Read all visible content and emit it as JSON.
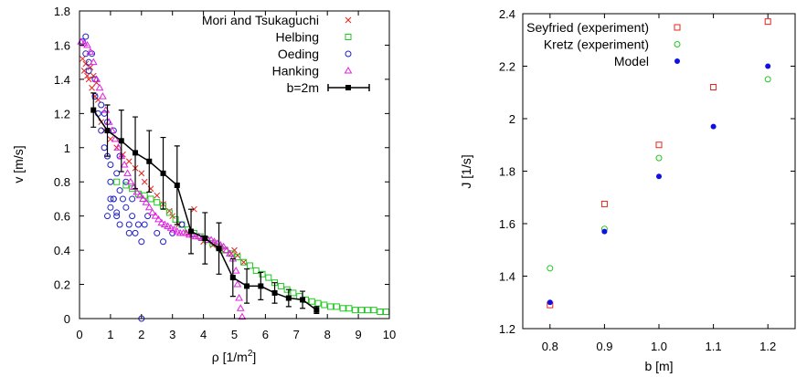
{
  "chart_data": [
    {
      "type": "scatter",
      "xlabel": "ρ [1/m",
      "xlabel_sup": "2",
      "xlabel_tail": "]",
      "ylabel": "v [m/s]",
      "xlim": [
        0,
        10
      ],
      "ylim": [
        0,
        1.8
      ],
      "xticks": [
        0,
        1,
        2,
        3,
        4,
        5,
        6,
        7,
        8,
        9,
        10
      ],
      "xtick_labels": [
        "0",
        "1",
        "2",
        "3",
        "4",
        "5",
        "6",
        "7",
        "8",
        "9",
        "10"
      ],
      "yticks": [
        0,
        0.2,
        0.4,
        0.6,
        0.8,
        1.0,
        1.2,
        1.4,
        1.6,
        1.8
      ],
      "ytick_labels": [
        "0",
        "0.2",
        "0.4",
        "0.6",
        "0.8",
        "1",
        "1.2",
        "1.4",
        "1.6",
        "1.8"
      ],
      "grid": false,
      "legend_position": "top-right",
      "series": [
        {
          "name": "Mori and Tsukaguchi",
          "marker": "x",
          "color": "#e8231f",
          "x": [
            0.1,
            0.15,
            0.2,
            0.25,
            0.3,
            0.35,
            0.4,
            0.45,
            0.5,
            0.55,
            0.6,
            0.7,
            0.8,
            1.0,
            1.2,
            1.4,
            1.6,
            1.8,
            2.0,
            2.1,
            2.3,
            2.5,
            2.7,
            2.9,
            3.0,
            3.2,
            3.5,
            3.7,
            4.0,
            4.3,
            4.6,
            4.9,
            5.0,
            5.1,
            5.3
          ],
          "y": [
            1.52,
            1.45,
            1.49,
            1.42,
            1.4,
            1.47,
            1.35,
            1.42,
            1.3,
            1.38,
            1.28,
            1.15,
            1.1,
            1.05,
            1.0,
            0.96,
            0.92,
            0.88,
            0.85,
            0.8,
            0.76,
            0.72,
            0.67,
            0.63,
            0.6,
            0.55,
            0.5,
            0.64,
            0.45,
            0.43,
            0.4,
            0.38,
            0.4,
            0.37,
            0.33
          ]
        },
        {
          "name": "Helbing",
          "marker": "square",
          "color": "#20c820",
          "x": [
            1.2,
            1.5,
            1.7,
            1.9,
            2.1,
            2.3,
            2.5,
            2.7,
            2.9,
            3.1,
            3.3,
            3.5,
            3.7,
            3.9,
            4.1,
            4.3,
            4.5,
            4.7,
            4.9,
            5.1,
            5.3,
            5.5,
            5.7,
            5.9,
            6.1,
            6.3,
            6.5,
            6.7,
            6.9,
            7.1,
            7.3,
            7.5,
            7.7,
            7.9,
            8.1,
            8.3,
            8.5,
            8.7,
            8.9,
            9.1,
            9.3,
            9.5,
            9.7,
            9.9
          ],
          "y": [
            0.8,
            0.78,
            0.76,
            0.73,
            0.72,
            0.7,
            0.68,
            0.66,
            0.62,
            0.58,
            0.55,
            0.52,
            0.5,
            0.48,
            0.46,
            0.44,
            0.42,
            0.4,
            0.38,
            0.36,
            0.33,
            0.31,
            0.28,
            0.26,
            0.24,
            0.21,
            0.19,
            0.17,
            0.15,
            0.13,
            0.11,
            0.1,
            0.09,
            0.08,
            0.07,
            0.07,
            0.06,
            0.06,
            0.05,
            0.05,
            0.05,
            0.05,
            0.04,
            0.04
          ]
        },
        {
          "name": "Oeding",
          "marker": "circle",
          "color": "#2020c8",
          "x": [
            0.1,
            0.2,
            0.2,
            0.3,
            0.3,
            0.4,
            0.5,
            0.5,
            0.6,
            0.7,
            0.7,
            0.8,
            0.8,
            0.9,
            0.9,
            1.0,
            1.0,
            1.0,
            1.1,
            1.1,
            1.2,
            1.2,
            1.3,
            1.3,
            1.4,
            1.5,
            1.5,
            1.6,
            1.7,
            1.7,
            1.8,
            1.9,
            2.0,
            2.1,
            2.2,
            2.5,
            2.7,
            3.0,
            3.3,
            0.9,
            1.0,
            1.1,
            1.2,
            1.3,
            1.6,
            2.0
          ],
          "y": [
            1.62,
            1.65,
            1.55,
            1.5,
            1.45,
            1.55,
            1.4,
            1.3,
            1.2,
            1.25,
            1.1,
            1.0,
            1.2,
            0.95,
            1.15,
            0.7,
            0.8,
            0.9,
            0.7,
            1.1,
            0.6,
            0.85,
            0.75,
            0.95,
            0.7,
            0.65,
            0.8,
            0.55,
            0.6,
            0.7,
            0.5,
            0.55,
            0.45,
            0.55,
            0.6,
            0.5,
            0.45,
            0.5,
            0.55,
            0.6,
            0.65,
            0.7,
            0.62,
            0.55,
            0.5,
            0.0
          ]
        },
        {
          "name": "Hanking",
          "marker": "triangle",
          "color": "#e020e0",
          "x": [
            0.05,
            0.15,
            0.25,
            0.35,
            0.45,
            0.55,
            0.65,
            0.75,
            0.85,
            0.95,
            1.05,
            1.15,
            1.25,
            1.35,
            1.45,
            1.55,
            1.65,
            1.75,
            1.85,
            1.95,
            2.05,
            2.15,
            2.25,
            2.35,
            2.45,
            2.55,
            2.65,
            2.75,
            2.85,
            2.95,
            3.05,
            3.15,
            3.25,
            3.35,
            3.45,
            3.55,
            3.65,
            3.75,
            3.85,
            3.95,
            4.05,
            4.15,
            4.25,
            4.35,
            4.45,
            4.55,
            4.65,
            4.75,
            4.85,
            4.95,
            5.05,
            5.1,
            5.15,
            5.2,
            5.25
          ],
          "y": [
            1.62,
            1.61,
            1.6,
            1.56,
            1.5,
            1.4,
            1.35,
            1.3,
            1.22,
            1.15,
            1.1,
            1.05,
            1.0,
            0.95,
            0.9,
            0.85,
            0.8,
            0.77,
            0.74,
            0.72,
            0.7,
            0.68,
            0.65,
            0.62,
            0.6,
            0.58,
            0.56,
            0.55,
            0.54,
            0.53,
            0.52,
            0.51,
            0.5,
            0.5,
            0.5,
            0.49,
            0.49,
            0.48,
            0.48,
            0.47,
            0.47,
            0.46,
            0.46,
            0.45,
            0.44,
            0.43,
            0.42,
            0.4,
            0.38,
            0.35,
            0.28,
            0.2,
            0.12,
            0.06,
            0.01
          ]
        },
        {
          "name": "b=2m",
          "marker": "filled-square-line-errorbars",
          "color": "#000000",
          "x": [
            0.45,
            0.9,
            1.35,
            1.8,
            2.25,
            2.7,
            3.15,
            3.6,
            4.05,
            4.5,
            4.95,
            5.4,
            5.85,
            6.3,
            6.75,
            7.2,
            7.65
          ],
          "y": [
            1.22,
            1.1,
            1.04,
            0.97,
            0.92,
            0.85,
            0.78,
            0.51,
            0.47,
            0.41,
            0.24,
            0.19,
            0.19,
            0.15,
            0.12,
            0.11,
            0.05
          ],
          "err": [
            0.1,
            0.15,
            0.18,
            0.21,
            0.18,
            0.21,
            0.23,
            0.13,
            0.15,
            0.15,
            0.11,
            0.1,
            0.08,
            0.06,
            0.05,
            0.05,
            0.02
          ]
        }
      ]
    },
    {
      "type": "scatter",
      "xlabel": "b [m]",
      "ylabel": "J [1/s]",
      "xlim": [
        0.75,
        1.25
      ],
      "ylim": [
        1.2,
        2.4
      ],
      "xticks": [
        0.8,
        0.9,
        1.0,
        1.1,
        1.2
      ],
      "xtick_labels": [
        "0.8",
        "0.9",
        "1.0",
        "1.1",
        "1.2"
      ],
      "yticks": [
        1.2,
        1.4,
        1.6,
        1.8,
        2.0,
        2.2,
        2.4
      ],
      "ytick_labels": [
        "1.2",
        "1.4",
        "1.6",
        "1.8",
        "2",
        "2.2",
        "2.4"
      ],
      "grid": false,
      "legend_position": "top-left",
      "series": [
        {
          "name": "Seyfried (experiment)",
          "marker": "square",
          "color": "#e8231f",
          "x": [
            0.8,
            0.9,
            1.0,
            1.1,
            1.2
          ],
          "y": [
            1.29,
            1.675,
            1.9,
            2.12,
            2.37
          ]
        },
        {
          "name": "Kretz (experiment)",
          "marker": "circle",
          "color": "#20c820",
          "x": [
            0.8,
            0.9,
            1.0,
            1.1,
            1.2
          ],
          "y": [
            1.43,
            1.58,
            1.85,
            null,
            2.15
          ]
        },
        {
          "name": "Model",
          "marker": "filled-circle",
          "color": "#1010e0",
          "x": [
            0.8,
            0.9,
            1.0,
            1.1,
            1.2
          ],
          "y": [
            1.3,
            1.57,
            1.78,
            1.97,
            2.2
          ]
        }
      ]
    }
  ]
}
